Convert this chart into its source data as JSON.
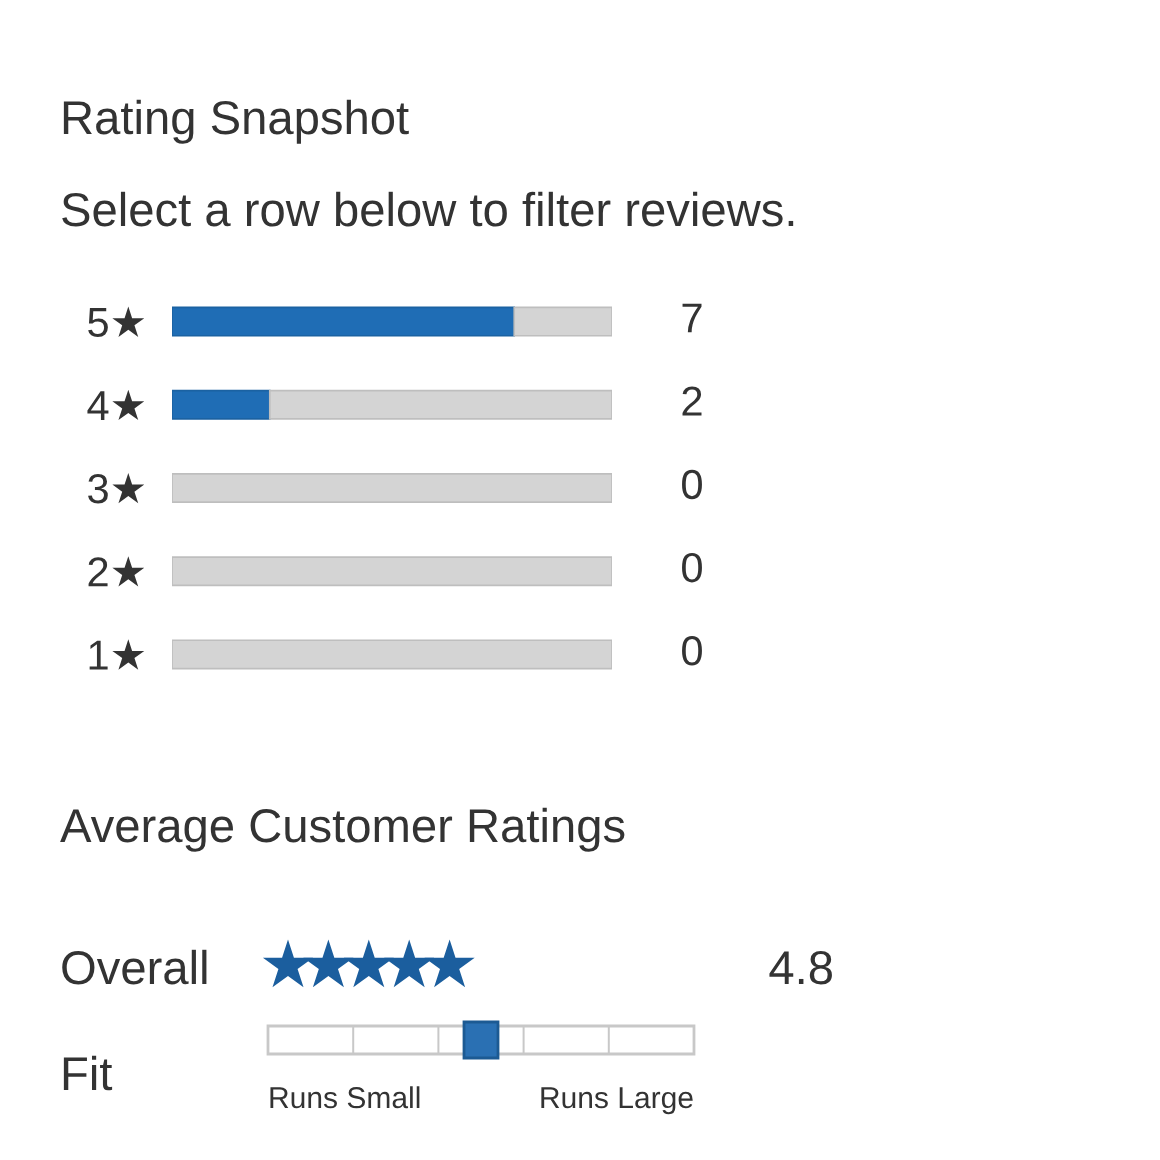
{
  "chart_data": [
    {
      "type": "bar",
      "orientation": "horizontal",
      "stacked": true,
      "title": "Rating Snapshot",
      "subtitle": "Select a row below to filter reviews.",
      "categories": [
        "5★",
        "4★",
        "3★",
        "2★",
        "1★"
      ],
      "series": [
        {
          "color": "#1f6db5",
          "values": [
            7,
            2,
            0,
            0,
            0
          ],
          "value_labels": [
            "7",
            "2",
            "0",
            "0",
            "0"
          ]
        },
        {
          "color": "#d4d4d4",
          "values": [
            2,
            7,
            9,
            9,
            9
          ]
        }
      ],
      "xlim": [
        0,
        9
      ],
      "tick_labels": "y"
    },
    {
      "type": "other",
      "title": "Average Customer Ratings",
      "annotations": [
        "Overall",
        "4.8",
        "Fit",
        "Runs Small",
        "Runs Large"
      ]
    }
  ]
}
